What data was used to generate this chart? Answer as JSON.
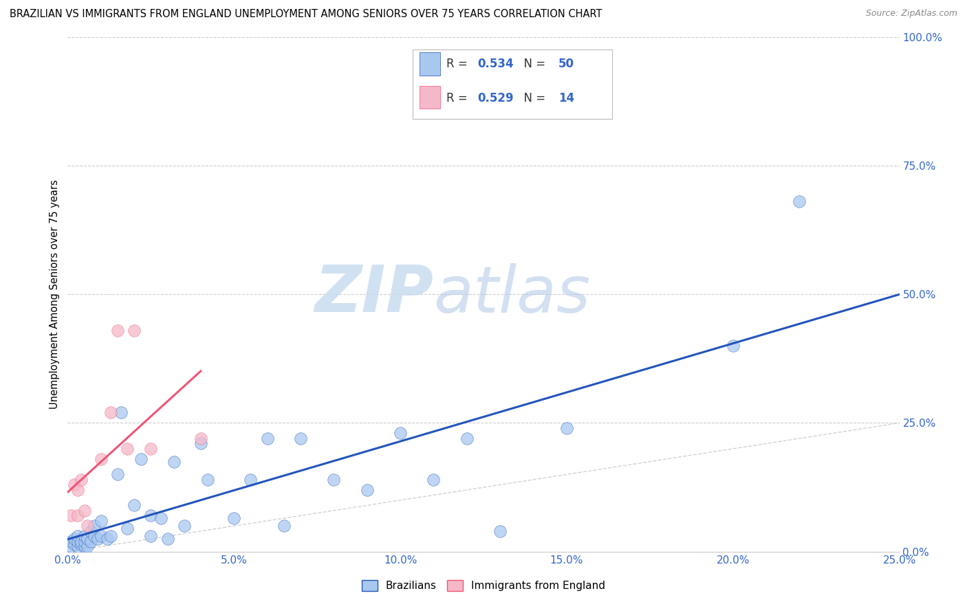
{
  "title": "BRAZILIAN VS IMMIGRANTS FROM ENGLAND UNEMPLOYMENT AMONG SENIORS OVER 75 YEARS CORRELATION CHART",
  "source": "Source: ZipAtlas.com",
  "ylabel": "Unemployment Among Seniors over 75 years",
  "xmin": 0.0,
  "xmax": 0.25,
  "ymin": 0.0,
  "ymax": 1.0,
  "watermark_zip": "ZIP",
  "watermark_atlas": "atlas",
  "legend_bottom_label1": "Brazilians",
  "legend_bottom_label2": "Immigrants from England",
  "blue_color": "#A8C8F0",
  "pink_color": "#F5B8C8",
  "line_blue": "#2255BB",
  "line_pink": "#EE5577",
  "diag_color": "#CCCCCC",
  "R_blue_str": "0.534",
  "N_blue_str": "50",
  "R_pink_str": "0.529",
  "N_pink_str": "14",
  "blue_x": [
    0.001,
    0.001,
    0.002,
    0.002,
    0.003,
    0.003,
    0.003,
    0.004,
    0.004,
    0.005,
    0.005,
    0.005,
    0.006,
    0.006,
    0.007,
    0.007,
    0.008,
    0.008,
    0.009,
    0.01,
    0.01,
    0.012,
    0.013,
    0.015,
    0.016,
    0.018,
    0.02,
    0.022,
    0.025,
    0.025,
    0.028,
    0.03,
    0.032,
    0.035,
    0.04,
    0.042,
    0.05,
    0.055,
    0.06,
    0.065,
    0.07,
    0.08,
    0.09,
    0.1,
    0.11,
    0.12,
    0.13,
    0.15,
    0.2,
    0.22
  ],
  "blue_y": [
    0.01,
    0.02,
    0.015,
    0.025,
    0.01,
    0.02,
    0.03,
    0.015,
    0.02,
    0.01,
    0.02,
    0.03,
    0.01,
    0.025,
    0.02,
    0.04,
    0.03,
    0.05,
    0.025,
    0.03,
    0.06,
    0.025,
    0.03,
    0.15,
    0.27,
    0.045,
    0.09,
    0.18,
    0.07,
    0.03,
    0.065,
    0.025,
    0.175,
    0.05,
    0.21,
    0.14,
    0.065,
    0.14,
    0.22,
    0.05,
    0.22,
    0.14,
    0.12,
    0.23,
    0.14,
    0.22,
    0.04,
    0.24,
    0.4,
    0.68
  ],
  "pink_x": [
    0.001,
    0.002,
    0.003,
    0.003,
    0.004,
    0.005,
    0.006,
    0.01,
    0.013,
    0.015,
    0.018,
    0.02,
    0.025,
    0.04
  ],
  "pink_y": [
    0.07,
    0.13,
    0.07,
    0.12,
    0.14,
    0.08,
    0.05,
    0.18,
    0.27,
    0.43,
    0.2,
    0.43,
    0.2,
    0.22
  ]
}
